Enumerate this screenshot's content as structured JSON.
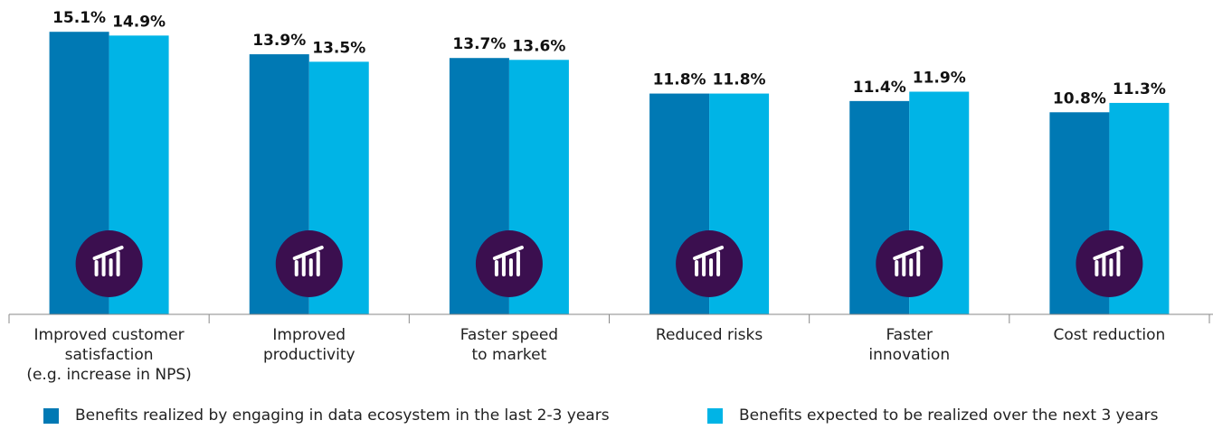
{
  "chart_data": {
    "type": "bar",
    "categories": [
      "Improved customer\nsatisfaction\n(e.g. increase in NPS)",
      "Improved\nproductivity",
      "Faster speed\nto market",
      "Reduced risks",
      "Faster\ninnovation",
      "Cost reduction"
    ],
    "series": [
      {
        "name": "Benefits realized by engaging in data ecosystem in the last 2-3 years",
        "color": "#0079b4",
        "values": [
          15.1,
          13.9,
          13.7,
          11.8,
          11.4,
          10.8
        ],
        "value_labels": [
          "15.1%",
          "13.9%",
          "13.7%",
          "11.8%",
          "11.4%",
          "10.8%"
        ]
      },
      {
        "name": "Benefits expected to be realized over the next 3 years",
        "color": "#00b4e6",
        "values": [
          14.9,
          13.5,
          13.6,
          11.8,
          11.9,
          11.3
        ],
        "value_labels": [
          "14.9%",
          "13.5%",
          "13.6%",
          "11.8%",
          "11.9%",
          "11.3%"
        ]
      }
    ],
    "ylim": [
      0,
      16.8
    ]
  }
}
